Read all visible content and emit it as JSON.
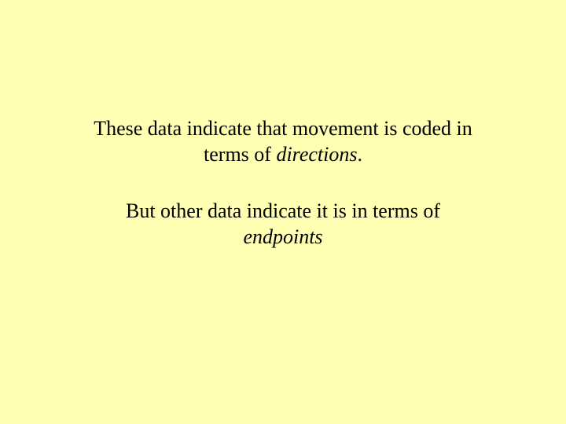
{
  "slide": {
    "background_color": "#ffffb3",
    "text_color": "#000000",
    "font_family": "Times New Roman",
    "font_size_pt": 26,
    "paragraphs": {
      "p1": {
        "part1": "These data indicate that movement is coded in terms of ",
        "italic": "directions",
        "part2": "."
      },
      "p2": {
        "part1": "But other data indicate it is in terms of ",
        "italic": "endpoints"
      }
    }
  }
}
